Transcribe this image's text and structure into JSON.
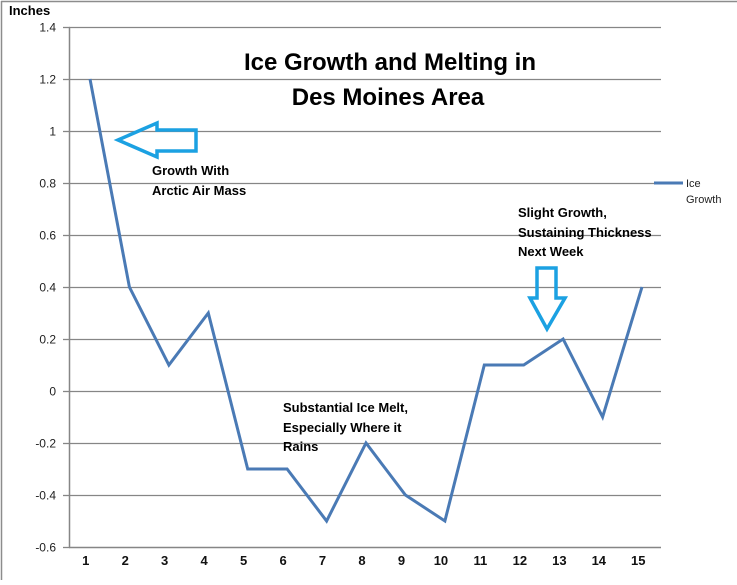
{
  "chart_data": {
    "type": "line",
    "title": "Ice Growth and Melting in Des Moines Area",
    "title_lines": [
      "Ice Growth and Melting in",
      "Des Moines Area"
    ],
    "xlabel": "",
    "ylabel": "Inches",
    "categories": [
      "1",
      "2",
      "3",
      "4",
      "5",
      "6",
      "7",
      "8",
      "9",
      "10",
      "11",
      "12",
      "13",
      "14",
      "15"
    ],
    "series": [
      {
        "name": "Ice Growth",
        "color": "#4a7ab5",
        "values": [
          1.2,
          0.4,
          0.1,
          0.3,
          -0.3,
          -0.3,
          -0.5,
          -0.2,
          -0.4,
          -0.5,
          0.1,
          0.1,
          0.2,
          -0.1,
          0.4
        ]
      }
    ],
    "ylim": [
      -0.6,
      1.4
    ],
    "yticks": [
      "1.4",
      "1.2",
      "1",
      "0.8",
      "0.6",
      "0.4",
      "0.2",
      "0",
      "-0.2",
      "-0.4",
      "-0.6"
    ],
    "grid": true,
    "legend_position": "right",
    "legend": {
      "label_lines": [
        "Ice",
        "Growth"
      ]
    },
    "annotations": [
      {
        "id": "arctic",
        "lines": [
          "Growth With",
          "Arctic Air Mass"
        ],
        "arrow": "left",
        "arrow_color": "#1ba1e2"
      },
      {
        "id": "melt",
        "lines": [
          "Substantial Ice Melt,",
          "Especially Where it",
          "Rains"
        ]
      },
      {
        "id": "slight",
        "lines": [
          "Slight Growth,",
          "Sustaining Thickness",
          "Next Week"
        ],
        "arrow": "down",
        "arrow_color": "#1ba1e2"
      }
    ]
  }
}
